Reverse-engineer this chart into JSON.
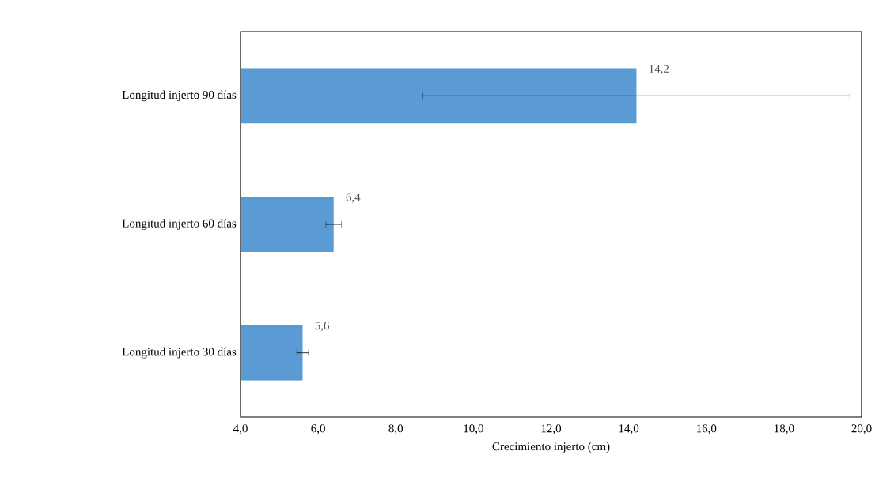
{
  "chart_data": {
    "type": "bar",
    "orientation": "horizontal",
    "xlabel": "Crecimiento injerto (cm)",
    "categories": [
      "Longitud injerto 90 días",
      "Longitud injerto 60 días",
      "Longitud injerto 30 días"
    ],
    "values": [
      14.2,
      6.4,
      5.6
    ],
    "errors": [
      5.5,
      0.2,
      0.15
    ],
    "value_labels": [
      "14,2",
      "6,4",
      "5,6"
    ],
    "color": "#5b9bd5",
    "xlim": [
      4,
      20
    ],
    "xticks": [
      {
        "value": 4,
        "label": "4,0"
      },
      {
        "value": 6,
        "label": "6,0"
      },
      {
        "value": 8,
        "label": "8,0"
      },
      {
        "value": 10,
        "label": "10,0"
      },
      {
        "value": 12,
        "label": "12,0"
      },
      {
        "value": 14,
        "label": "14,0"
      },
      {
        "value": 16,
        "label": "16,0"
      },
      {
        "value": 18,
        "label": "18,0"
      },
      {
        "value": 20,
        "label": "20,0"
      }
    ],
    "grid": false
  }
}
